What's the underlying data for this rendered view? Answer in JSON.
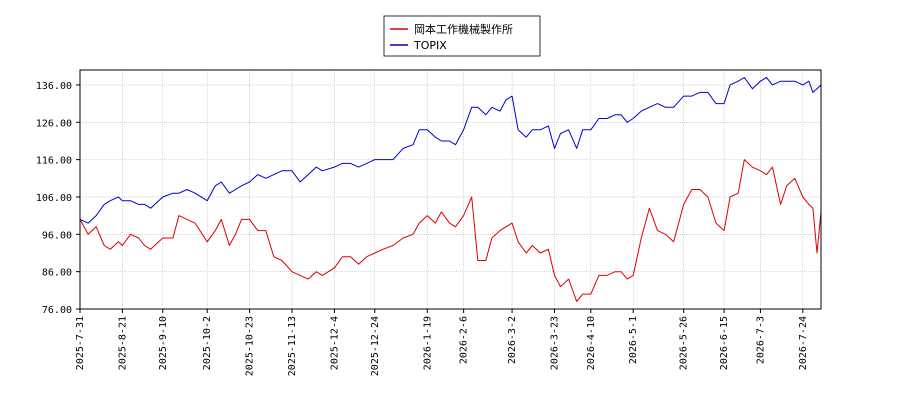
{
  "chart_data": {
    "type": "line",
    "title": "",
    "xlabel": "",
    "ylabel": "",
    "ylim": [
      76,
      140
    ],
    "yticks": [
      76,
      86,
      96,
      106,
      116,
      126,
      136
    ],
    "ytick_labels": [
      "76.00",
      "86.00",
      "96.00",
      "106.00",
      "116.00",
      "126.00",
      "136.00"
    ],
    "x_range": [
      "2025-07-31",
      "2026-08-02"
    ],
    "xticks": [
      "2025-7-31",
      "2025-8-21",
      "2025-9-10",
      "2025-10-2",
      "2025-10-23",
      "2025-11-13",
      "2025-12-4",
      "2025-12-24",
      "2026-1-19",
      "2026-2-6",
      "2026-3-2",
      "2026-3-23",
      "2026-4-10",
      "2026-5-1",
      "2026-5-26",
      "2026-6-15",
      "2026-7-3",
      "2026-7-24"
    ],
    "grid": true,
    "legend_position": "top-center",
    "series": [
      {
        "name": "岡本工作機械製作所",
        "color": "#dd0000",
        "points": [
          [
            "2025-07-31",
            100
          ],
          [
            "2025-08-04",
            96
          ],
          [
            "2025-08-08",
            98
          ],
          [
            "2025-08-12",
            93
          ],
          [
            "2025-08-15",
            92
          ],
          [
            "2025-08-19",
            94
          ],
          [
            "2025-08-21",
            93
          ],
          [
            "2025-08-25",
            96
          ],
          [
            "2025-08-29",
            95
          ],
          [
            "2025-09-01",
            93
          ],
          [
            "2025-09-04",
            92
          ],
          [
            "2025-09-08",
            94
          ],
          [
            "2025-09-10",
            95
          ],
          [
            "2025-09-15",
            95
          ],
          [
            "2025-09-18",
            101
          ],
          [
            "2025-09-22",
            100
          ],
          [
            "2025-09-26",
            99
          ],
          [
            "2025-10-02",
            94
          ],
          [
            "2025-10-06",
            97
          ],
          [
            "2025-10-09",
            100
          ],
          [
            "2025-10-13",
            93
          ],
          [
            "2025-10-16",
            96
          ],
          [
            "2025-10-19",
            100
          ],
          [
            "2025-10-23",
            100
          ],
          [
            "2025-10-27",
            97
          ],
          [
            "2025-10-31",
            97
          ],
          [
            "2025-11-04",
            90
          ],
          [
            "2025-11-08",
            89
          ],
          [
            "2025-11-13",
            86
          ],
          [
            "2025-11-17",
            85
          ],
          [
            "2025-11-21",
            84
          ],
          [
            "2025-11-25",
            86
          ],
          [
            "2025-11-28",
            85
          ],
          [
            "2025-12-04",
            87
          ],
          [
            "2025-12-08",
            90
          ],
          [
            "2025-12-12",
            90
          ],
          [
            "2025-12-16",
            88
          ],
          [
            "2025-12-20",
            90
          ],
          [
            "2025-12-24",
            91
          ],
          [
            "2025-12-28",
            92
          ],
          [
            "2026-01-02",
            93
          ],
          [
            "2026-01-07",
            95
          ],
          [
            "2026-01-12",
            96
          ],
          [
            "2026-01-15",
            99
          ],
          [
            "2026-01-19",
            101
          ],
          [
            "2026-01-23",
            99
          ],
          [
            "2026-01-26",
            102
          ],
          [
            "2026-01-30",
            99
          ],
          [
            "2026-02-02",
            98
          ],
          [
            "2026-02-06",
            101
          ],
          [
            "2026-02-10",
            106
          ],
          [
            "2026-02-13",
            89
          ],
          [
            "2026-02-17",
            89
          ],
          [
            "2026-02-20",
            95
          ],
          [
            "2026-02-24",
            97
          ],
          [
            "2026-02-27",
            98
          ],
          [
            "2026-03-02",
            99
          ],
          [
            "2026-03-05",
            94
          ],
          [
            "2026-03-09",
            91
          ],
          [
            "2026-03-12",
            93
          ],
          [
            "2026-03-16",
            91
          ],
          [
            "2026-03-20",
            92
          ],
          [
            "2026-03-23",
            85
          ],
          [
            "2026-03-26",
            82
          ],
          [
            "2026-03-30",
            84
          ],
          [
            "2026-04-03",
            78
          ],
          [
            "2026-04-06",
            80
          ],
          [
            "2026-04-10",
            80
          ],
          [
            "2026-04-14",
            85
          ],
          [
            "2026-04-18",
            85
          ],
          [
            "2026-04-22",
            86
          ],
          [
            "2026-04-25",
            86
          ],
          [
            "2026-04-28",
            84
          ],
          [
            "2026-05-01",
            85
          ],
          [
            "2026-05-05",
            95
          ],
          [
            "2026-05-09",
            103
          ],
          [
            "2026-05-13",
            97
          ],
          [
            "2026-05-17",
            96
          ],
          [
            "2026-05-21",
            94
          ],
          [
            "2026-05-26",
            104
          ],
          [
            "2026-05-30",
            108
          ],
          [
            "2026-06-03",
            108
          ],
          [
            "2026-06-07",
            106
          ],
          [
            "2026-06-11",
            99
          ],
          [
            "2026-06-15",
            97
          ],
          [
            "2026-06-18",
            106
          ],
          [
            "2026-06-22",
            107
          ],
          [
            "2026-06-25",
            116
          ],
          [
            "2026-06-29",
            114
          ],
          [
            "2026-07-03",
            113
          ],
          [
            "2026-07-06",
            112
          ],
          [
            "2026-07-09",
            114
          ],
          [
            "2026-07-13",
            104
          ],
          [
            "2026-07-16",
            109
          ],
          [
            "2026-07-20",
            111
          ],
          [
            "2026-07-24",
            106
          ],
          [
            "2026-07-27",
            104
          ],
          [
            "2026-07-29",
            103
          ],
          [
            "2026-07-31",
            91
          ],
          [
            "2026-08-02",
            102
          ]
        ]
      },
      {
        "name": "TOPIX",
        "color": "#0000cc",
        "points": [
          [
            "2025-07-31",
            100
          ],
          [
            "2025-08-04",
            99
          ],
          [
            "2025-08-08",
            101
          ],
          [
            "2025-08-12",
            104
          ],
          [
            "2025-08-15",
            105
          ],
          [
            "2025-08-19",
            106
          ],
          [
            "2025-08-21",
            105
          ],
          [
            "2025-08-25",
            105
          ],
          [
            "2025-08-29",
            104
          ],
          [
            "2025-09-01",
            104
          ],
          [
            "2025-09-04",
            103
          ],
          [
            "2025-09-08",
            105
          ],
          [
            "2025-09-10",
            106
          ],
          [
            "2025-09-15",
            107
          ],
          [
            "2025-09-18",
            107
          ],
          [
            "2025-09-22",
            108
          ],
          [
            "2025-09-26",
            107
          ],
          [
            "2025-10-02",
            105
          ],
          [
            "2025-10-06",
            109
          ],
          [
            "2025-10-09",
            110
          ],
          [
            "2025-10-13",
            107
          ],
          [
            "2025-10-16",
            108
          ],
          [
            "2025-10-19",
            109
          ],
          [
            "2025-10-23",
            110
          ],
          [
            "2025-10-27",
            112
          ],
          [
            "2025-10-31",
            111
          ],
          [
            "2025-11-04",
            112
          ],
          [
            "2025-11-08",
            113
          ],
          [
            "2025-11-13",
            113
          ],
          [
            "2025-11-17",
            110
          ],
          [
            "2025-11-21",
            112
          ],
          [
            "2025-11-25",
            114
          ],
          [
            "2025-11-28",
            113
          ],
          [
            "2025-12-04",
            114
          ],
          [
            "2025-12-08",
            115
          ],
          [
            "2025-12-12",
            115
          ],
          [
            "2025-12-16",
            114
          ],
          [
            "2025-12-20",
            115
          ],
          [
            "2025-12-24",
            116
          ],
          [
            "2025-12-28",
            116
          ],
          [
            "2026-01-02",
            116
          ],
          [
            "2026-01-07",
            119
          ],
          [
            "2026-01-12",
            120
          ],
          [
            "2026-01-15",
            124
          ],
          [
            "2026-01-19",
            124
          ],
          [
            "2026-01-23",
            122
          ],
          [
            "2026-01-26",
            121
          ],
          [
            "2026-01-30",
            121
          ],
          [
            "2026-02-02",
            120
          ],
          [
            "2026-02-06",
            124
          ],
          [
            "2026-02-10",
            130
          ],
          [
            "2026-02-13",
            130
          ],
          [
            "2026-02-17",
            128
          ],
          [
            "2026-02-20",
            130
          ],
          [
            "2026-02-24",
            129
          ],
          [
            "2026-02-27",
            132
          ],
          [
            "2026-03-02",
            133
          ],
          [
            "2026-03-05",
            124
          ],
          [
            "2026-03-09",
            122
          ],
          [
            "2026-03-12",
            124
          ],
          [
            "2026-03-16",
            124
          ],
          [
            "2026-03-20",
            125
          ],
          [
            "2026-03-23",
            119
          ],
          [
            "2026-03-26",
            123
          ],
          [
            "2026-03-30",
            124
          ],
          [
            "2026-04-03",
            119
          ],
          [
            "2026-04-06",
            124
          ],
          [
            "2026-04-10",
            124
          ],
          [
            "2026-04-14",
            127
          ],
          [
            "2026-04-18",
            127
          ],
          [
            "2026-04-22",
            128
          ],
          [
            "2026-04-25",
            128
          ],
          [
            "2026-04-28",
            126
          ],
          [
            "2026-05-01",
            127
          ],
          [
            "2026-05-05",
            129
          ],
          [
            "2026-05-09",
            130
          ],
          [
            "2026-05-13",
            131
          ],
          [
            "2026-05-17",
            130
          ],
          [
            "2026-05-21",
            130
          ],
          [
            "2026-05-26",
            133
          ],
          [
            "2026-05-30",
            133
          ],
          [
            "2026-06-03",
            134
          ],
          [
            "2026-06-07",
            134
          ],
          [
            "2026-06-11",
            131
          ],
          [
            "2026-06-15",
            131
          ],
          [
            "2026-06-18",
            136
          ],
          [
            "2026-06-22",
            137
          ],
          [
            "2026-06-25",
            138
          ],
          [
            "2026-06-29",
            135
          ],
          [
            "2026-07-03",
            137
          ],
          [
            "2026-07-06",
            138
          ],
          [
            "2026-07-09",
            136
          ],
          [
            "2026-07-13",
            137
          ],
          [
            "2026-07-16",
            137
          ],
          [
            "2026-07-20",
            137
          ],
          [
            "2026-07-24",
            136
          ],
          [
            "2026-07-27",
            137
          ],
          [
            "2026-07-29",
            134
          ],
          [
            "2026-07-31",
            135
          ],
          [
            "2026-08-02",
            136
          ]
        ]
      }
    ]
  }
}
